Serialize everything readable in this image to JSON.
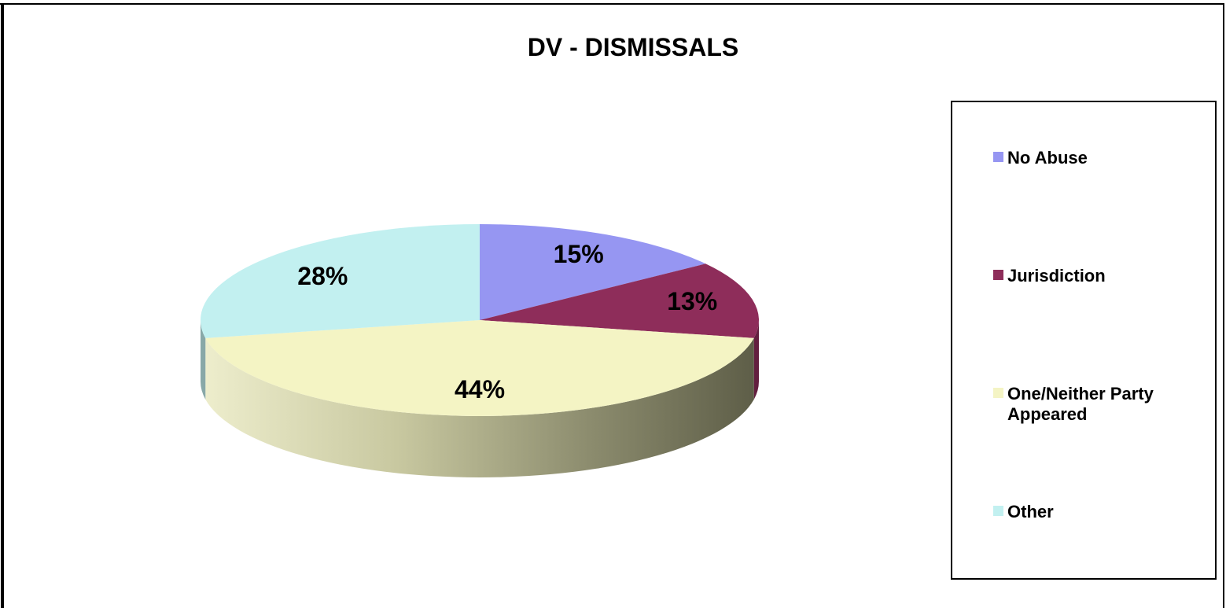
{
  "chart_data": {
    "type": "pie",
    "title": "DV - DISMISSALS",
    "categories": [
      "No Abuse",
      "Jurisdiction",
      "One/Neither Party Appeared",
      "Other"
    ],
    "values": [
      15,
      13,
      44,
      28
    ],
    "value_labels": [
      "15%",
      "13%",
      "44%",
      "28%"
    ],
    "colors": [
      "#9696F2",
      "#8E2D5A",
      "#F4F4C4",
      "#C2F0F0"
    ],
    "legend_position": "right",
    "style": "3d"
  },
  "legend": {
    "items": [
      {
        "label": "No Abuse",
        "color": "#9696F2"
      },
      {
        "label": "Jurisdiction",
        "color": "#8E2D5A"
      },
      {
        "label": "One/Neither Party Appeared",
        "color": "#F4F4C4"
      },
      {
        "label": "Other",
        "color": "#C2F0F0"
      }
    ]
  }
}
